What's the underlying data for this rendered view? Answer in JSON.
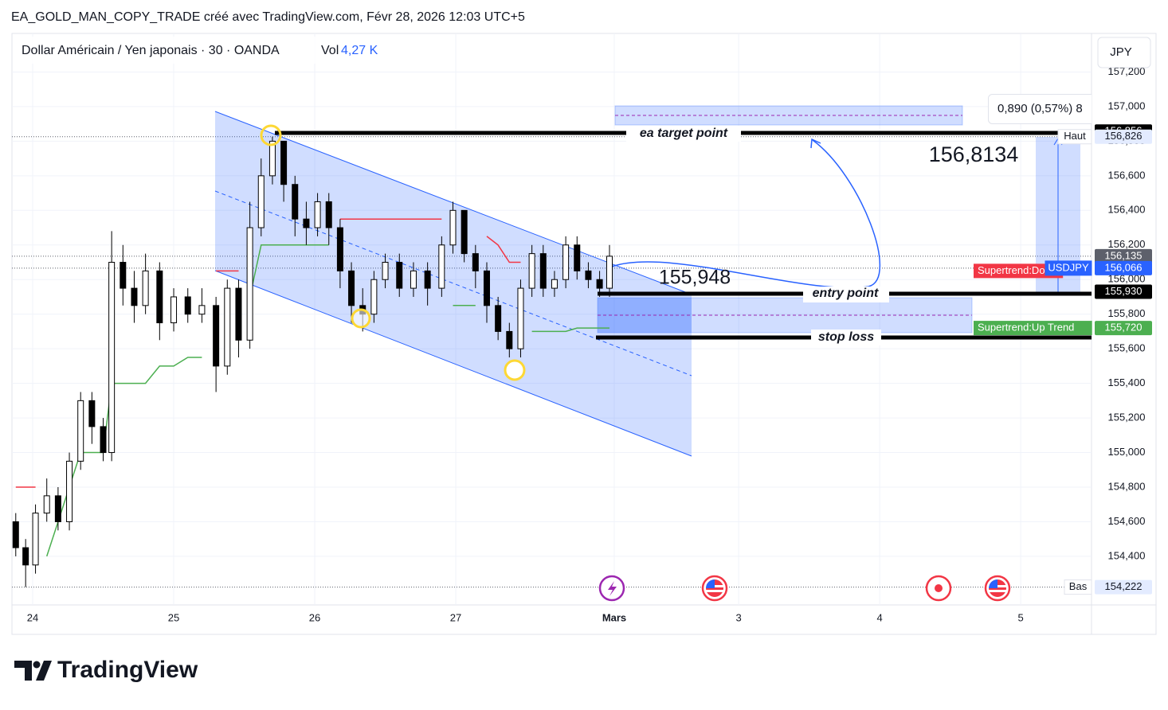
{
  "header": {
    "title": "EA_GOLD_MAN_COPY_TRADE créé avec TradingView.com, Févr 28, 2026 12:03 UTC+5"
  },
  "chart_data": {
    "type": "candlestick",
    "title": "Dollar Américain / Yen japonais · 30 · OANDA",
    "volume_label": "Vol",
    "volume_value": "4,27 K",
    "currency_button": "JPY",
    "candles": {
      "x": [
        -0.12,
        -0.05,
        0.02,
        0.1,
        0.18,
        0.26,
        0.34,
        0.42,
        0.5,
        0.56,
        0.64,
        0.72,
        0.8,
        0.9,
        1.0,
        1.1,
        1.2,
        1.3,
        1.38,
        1.46,
        1.54,
        1.62,
        1.7,
        1.78,
        1.86,
        1.94,
        2.02,
        2.1,
        2.18,
        2.26,
        2.34,
        2.42,
        2.5,
        2.6,
        2.7,
        2.8,
        2.9,
        2.98,
        3.06,
        3.14,
        3.22,
        3.3,
        3.38,
        3.46,
        3.54,
        3.62,
        3.7,
        3.78,
        3.86,
        3.94,
        4.02,
        4.09
      ],
      "open": [
        154.6,
        154.45,
        154.35,
        154.65,
        154.75,
        154.6,
        154.95,
        155.3,
        155.15,
        155.0,
        156.1,
        155.95,
        155.85,
        156.05,
        155.75,
        155.9,
        155.8,
        155.85,
        155.5,
        155.95,
        155.65,
        156.3,
        156.6,
        156.8,
        156.55,
        156.35,
        156.3,
        156.45,
        156.3,
        156.05,
        155.85,
        155.8,
        156.0,
        156.1,
        155.95,
        156.05,
        155.95,
        156.2,
        156.4,
        156.15,
        156.05,
        155.85,
        155.7,
        155.6,
        155.95,
        156.15,
        155.95,
        156.0,
        156.2,
        156.05,
        156.0,
        155.95
      ],
      "high": [
        154.65,
        154.5,
        154.7,
        154.85,
        154.8,
        155.0,
        155.35,
        155.35,
        155.2,
        156.28,
        156.2,
        156.05,
        156.15,
        156.1,
        155.95,
        155.95,
        155.95,
        155.9,
        156.0,
        156.0,
        156.45,
        156.7,
        156.826,
        156.8,
        156.6,
        156.45,
        156.5,
        156.5,
        156.35,
        156.1,
        155.95,
        156.05,
        156.15,
        156.15,
        156.1,
        156.1,
        156.25,
        156.45,
        156.4,
        156.2,
        156.1,
        155.9,
        155.75,
        156.0,
        156.2,
        156.2,
        156.05,
        156.25,
        156.25,
        156.1,
        156.05,
        156.2
      ],
      "low": [
        154.4,
        154.222,
        154.3,
        154.6,
        154.55,
        154.55,
        154.9,
        155.05,
        154.95,
        154.95,
        155.85,
        155.75,
        155.8,
        155.65,
        155.7,
        155.75,
        155.75,
        155.35,
        155.45,
        155.55,
        155.6,
        156.25,
        156.55,
        156.45,
        156.25,
        156.2,
        156.25,
        156.2,
        155.95,
        155.75,
        155.7,
        155.75,
        155.95,
        155.9,
        155.9,
        155.85,
        155.9,
        156.15,
        156.1,
        155.95,
        155.75,
        155.65,
        155.55,
        155.55,
        155.9,
        155.9,
        155.9,
        155.95,
        156.0,
        155.95,
        155.9,
        155.9
      ],
      "close": [
        154.45,
        154.35,
        154.65,
        154.75,
        154.6,
        154.95,
        155.3,
        155.15,
        155.0,
        156.1,
        155.95,
        155.85,
        156.05,
        155.75,
        155.9,
        155.8,
        155.85,
        155.5,
        155.95,
        155.65,
        156.3,
        156.6,
        156.8,
        156.55,
        156.35,
        156.3,
        156.45,
        156.3,
        156.05,
        155.85,
        155.8,
        156.0,
        156.1,
        155.95,
        156.05,
        155.95,
        156.2,
        156.4,
        156.15,
        156.05,
        155.85,
        155.7,
        155.6,
        155.95,
        156.15,
        155.95,
        156.0,
        156.2,
        156.05,
        156.0,
        155.95,
        156.135
      ]
    },
    "candle_colors": {
      "up": "#ffffff",
      "down": "#000000",
      "border": "#000000"
    },
    "supertrend": [
      {
        "name": "Supertrend:Up Trend",
        "color": "#4caf50",
        "last_label": "155,720",
        "last_value": 155.72,
        "values": [
          null,
          null,
          null,
          154.4,
          154.6,
          154.8,
          155.0,
          155.0,
          155.0,
          155.4,
          155.4,
          155.4,
          155.4,
          155.5,
          155.5,
          155.55,
          155.55,
          null,
          null,
          null,
          155.9,
          156.2,
          156.2,
          156.2,
          156.2,
          156.2,
          156.2,
          156.2,
          null,
          null,
          null,
          null,
          null,
          null,
          null,
          null,
          null,
          155.85,
          155.85,
          155.85,
          null,
          null,
          null,
          null,
          155.7,
          155.7,
          155.7,
          155.7,
          155.72,
          155.72,
          155.72,
          155.72
        ]
      },
      {
        "name": "Supertrend:Dow",
        "color": "#f23645",
        "last_value": 156.05,
        "values": [
          154.8,
          154.8,
          154.8,
          null,
          null,
          null,
          null,
          null,
          null,
          null,
          null,
          null,
          null,
          null,
          null,
          null,
          null,
          156.05,
          156.05,
          156.05,
          null,
          null,
          null,
          null,
          null,
          null,
          null,
          null,
          156.35,
          156.35,
          156.35,
          156.35,
          156.35,
          156.35,
          156.35,
          156.35,
          156.35,
          null,
          null,
          null,
          156.25,
          156.2,
          156.1,
          156.1,
          null,
          null,
          null,
          null,
          null,
          null,
          null,
          null
        ]
      }
    ],
    "xlim": [
      -0.147,
      7.508
    ],
    "xticks": [
      {
        "value": 0,
        "label": "24"
      },
      {
        "value": 1,
        "label": "25"
      },
      {
        "value": 2,
        "label": "26"
      },
      {
        "value": 3,
        "label": "27"
      },
      {
        "value": 4.124,
        "label": "Mars"
      },
      {
        "value": 5.006,
        "label": "3"
      },
      {
        "value": 6.006,
        "label": "4"
      },
      {
        "value": 7.006,
        "label": "5"
      }
    ],
    "ylim": [
      154.119,
      157.423
    ],
    "yticks": [
      {
        "value": 154.4,
        "label": "154,400"
      },
      {
        "value": 154.6,
        "label": "154,600"
      },
      {
        "value": 154.8,
        "label": "154,800"
      },
      {
        "value": 155.0,
        "label": "155,000"
      },
      {
        "value": 155.2,
        "label": "155,200"
      },
      {
        "value": 155.4,
        "label": "155,400"
      },
      {
        "value": 155.6,
        "label": "155,600"
      },
      {
        "value": 155.8,
        "label": "155,800"
      },
      {
        "value": 156.0,
        "label": "156,000"
      },
      {
        "value": 156.2,
        "label": "156,200"
      },
      {
        "value": 156.4,
        "label": "156,400"
      },
      {
        "value": 156.6,
        "label": "156,600"
      },
      {
        "value": 156.8,
        "label": "156,800"
      },
      {
        "value": 157.0,
        "label": "157,000"
      },
      {
        "value": 157.2,
        "label": "157,200"
      }
    ],
    "grid": true,
    "price_tags": [
      {
        "label": "156,856",
        "value": 156.856,
        "color": "#000000",
        "text_color": "#ffffff"
      },
      {
        "name": "Haut",
        "label": "156,826",
        "value": 156.826,
        "color": "#e3ebff",
        "text_color": "#131722",
        "dotted": true
      },
      {
        "label": "156,135",
        "value": 156.135,
        "color": "#5d606b",
        "text_color": "#ffffff",
        "dotted": true
      },
      {
        "name": "USDJPY",
        "label": "156,066",
        "value": 156.066,
        "color": "#2962ff",
        "text_color": "#ffffff",
        "dotted": true
      },
      {
        "label": "155,930",
        "value": 155.93,
        "color": "#000000",
        "text_color": "#ffffff"
      },
      {
        "name": "Bas",
        "label": "154,222",
        "value": 154.222,
        "color": "#e3ebff",
        "text_color": "#131722",
        "dotted": true
      }
    ],
    "annotations": {
      "target": "ea target point",
      "entry": "entry point",
      "stop": "stop loss",
      "price_a": "155,948",
      "price_b": "156,8134",
      "measure": "0,890 (0,57%) 8"
    }
  },
  "footer": {
    "brand": "TradingView"
  }
}
